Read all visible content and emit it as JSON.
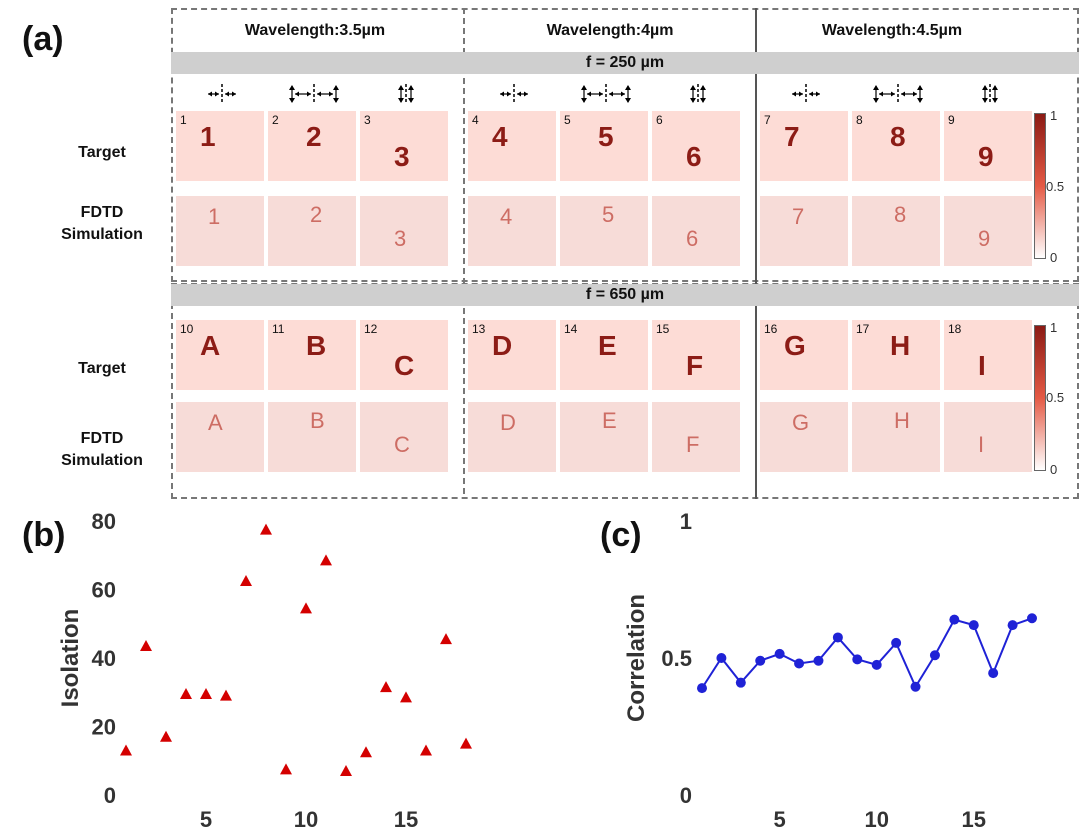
{
  "panels": {
    "a": "(a)",
    "b": "(b)",
    "c": "(c)"
  },
  "wavelengths": [
    "Wavelength:3.5µm",
    "Wavelength:4µm",
    "Wavelength:4.5µm"
  ],
  "focal_bars": [
    "f = 250 µm",
    "f = 650 µm"
  ],
  "row_labels": {
    "target": "Target",
    "sim_line1": "FDTD",
    "sim_line2": "Simulation"
  },
  "polarization_icons": [
    "horizontal-icon",
    "horizontal-vertical-icon",
    "vertical-icon"
  ],
  "top_cells": [
    {
      "num": "1",
      "glyph": "1"
    },
    {
      "num": "2",
      "glyph": "2"
    },
    {
      "num": "3",
      "glyph": "3"
    },
    {
      "num": "4",
      "glyph": "4"
    },
    {
      "num": "5",
      "glyph": "5"
    },
    {
      "num": "6",
      "glyph": "6"
    },
    {
      "num": "7",
      "glyph": "7"
    },
    {
      "num": "8",
      "glyph": "8"
    },
    {
      "num": "9",
      "glyph": "9"
    }
  ],
  "bottom_cells": [
    {
      "num": "10",
      "glyph": "A"
    },
    {
      "num": "11",
      "glyph": "B"
    },
    {
      "num": "12",
      "glyph": "C"
    },
    {
      "num": "13",
      "glyph": "D"
    },
    {
      "num": "14",
      "glyph": "E"
    },
    {
      "num": "15",
      "glyph": "F"
    },
    {
      "num": "16",
      "glyph": "G"
    },
    {
      "num": "17",
      "glyph": "H"
    },
    {
      "num": "18",
      "glyph": "I"
    }
  ],
  "colorbar": {
    "ticks": [
      "1",
      "0.5",
      "0"
    ],
    "colors": [
      "#8b1a14",
      "#e45a45",
      "#ffffff"
    ]
  },
  "chart_data": [
    {
      "type": "scatter",
      "marker": "triangle",
      "color": "#d40000",
      "xlabel": "",
      "ylabel": "Isolation",
      "xlim": [
        1,
        18
      ],
      "ylim": [
        0,
        80
      ],
      "xticks": [
        5,
        10,
        15
      ],
      "yticks": [
        0,
        20,
        40,
        60,
        80
      ],
      "x": [
        1,
        2,
        3,
        4,
        5,
        6,
        7,
        8,
        9,
        10,
        11,
        12,
        13,
        14,
        15,
        16,
        17,
        18
      ],
      "y": [
        13,
        43.5,
        17,
        29.5,
        29.5,
        29,
        62.5,
        77.5,
        7.5,
        54.5,
        68.5,
        7,
        12.5,
        31.5,
        28.5,
        13,
        45.5,
        15
      ]
    },
    {
      "type": "line",
      "marker": "circle",
      "color": "#1f22d6",
      "xlabel": "",
      "ylabel": "Correlation",
      "xlim": [
        1,
        18
      ],
      "ylim": [
        0,
        1
      ],
      "xticks": [
        5,
        10,
        15
      ],
      "yticks": [
        0,
        0.5,
        1
      ],
      "ytick_labels": [
        "0",
        "0.5",
        "1"
      ],
      "x": [
        1,
        2,
        3,
        4,
        5,
        6,
        7,
        8,
        9,
        10,
        11,
        12,
        13,
        14,
        15,
        16,
        17,
        18
      ],
      "y": [
        0.39,
        0.5,
        0.41,
        0.49,
        0.515,
        0.48,
        0.49,
        0.575,
        0.495,
        0.475,
        0.555,
        0.395,
        0.51,
        0.64,
        0.62,
        0.445,
        0.62,
        0.645
      ]
    }
  ]
}
